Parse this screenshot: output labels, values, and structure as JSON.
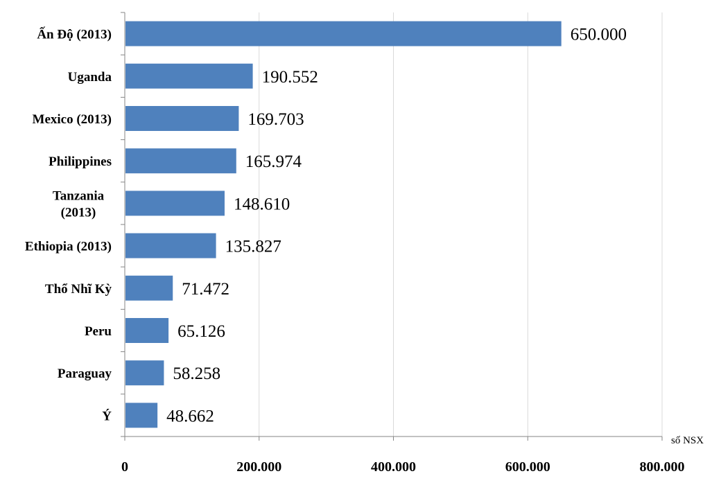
{
  "chart_data": {
    "type": "bar",
    "orientation": "horizontal",
    "categories": [
      "Ấn Độ (2013)",
      "Uganda",
      "Mexico (2013)",
      "Philippines",
      "Tanzania (2013)",
      "Ethiopia (2013)",
      "Thổ Nhĩ Kỳ",
      "Peru",
      "Paraguay",
      "Ý"
    ],
    "category_display_lines": [
      [
        "Ấn Độ (2013)"
      ],
      [
        "Uganda"
      ],
      [
        "Mexico (2013)"
      ],
      [
        "Philippines"
      ],
      [
        "Tanzania",
        "(2013)"
      ],
      [
        "Ethiopia (2013)"
      ],
      [
        "Thổ Nhĩ Kỳ"
      ],
      [
        "Peru"
      ],
      [
        "Paraguay"
      ],
      [
        "Ý"
      ]
    ],
    "values": [
      650000,
      190552,
      169703,
      165974,
      148610,
      135827,
      71472,
      65126,
      58258,
      48662
    ],
    "data_labels": [
      "650.000",
      "190.552",
      "169.703",
      "165.974",
      "148.610",
      "135.827",
      "71.472",
      "65.126",
      "58.258",
      "48.662"
    ],
    "x_ticks": [
      0,
      200000,
      400000,
      600000,
      800000
    ],
    "x_tick_labels": [
      "0",
      "200.000",
      "400.000",
      "600.000",
      "800.000"
    ],
    "xlim": [
      0,
      800000
    ],
    "xlabel": "số NSX",
    "title": "",
    "grid": "vertical",
    "colors": {
      "bar": "#4f81bd",
      "grid": "#d9d9d9",
      "axis": "#868686",
      "text": "#000000"
    }
  }
}
